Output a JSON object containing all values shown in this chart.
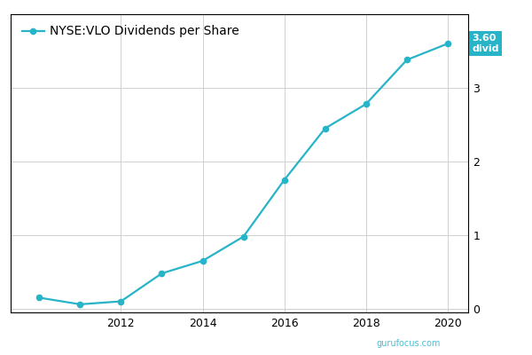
{
  "years": [
    2010,
    2011,
    2012,
    2013,
    2014,
    2015,
    2016,
    2017,
    2018,
    2019,
    2020
  ],
  "dividends": [
    0.15,
    0.06,
    0.1,
    0.48,
    0.65,
    0.98,
    1.75,
    2.45,
    2.78,
    3.38,
    3.6
  ],
  "line_color": "#28B4C8",
  "marker_color": "#28B4C8",
  "bg_color": "#FFFFFF",
  "grid_color": "#D0D0D0",
  "legend_label": "NYSE:VLO Dividends per Share",
  "ylabel_ticks": [
    0,
    1,
    2,
    3
  ],
  "ylim": [
    -0.05,
    4.0
  ],
  "xlim": [
    2009.3,
    2020.5
  ],
  "xticks": [
    2012,
    2014,
    2016,
    2018,
    2020
  ],
  "callout_value": "3.60",
  "callout_label": "divid",
  "callout_bg": "#28B4C8",
  "callout_text_color": "#FFFFFF",
  "legend_fontsize": 10,
  "tick_fontsize": 9,
  "logo_text": "gurufocus.com",
  "logo_color": "#28B4C8",
  "border_color": "#000000"
}
